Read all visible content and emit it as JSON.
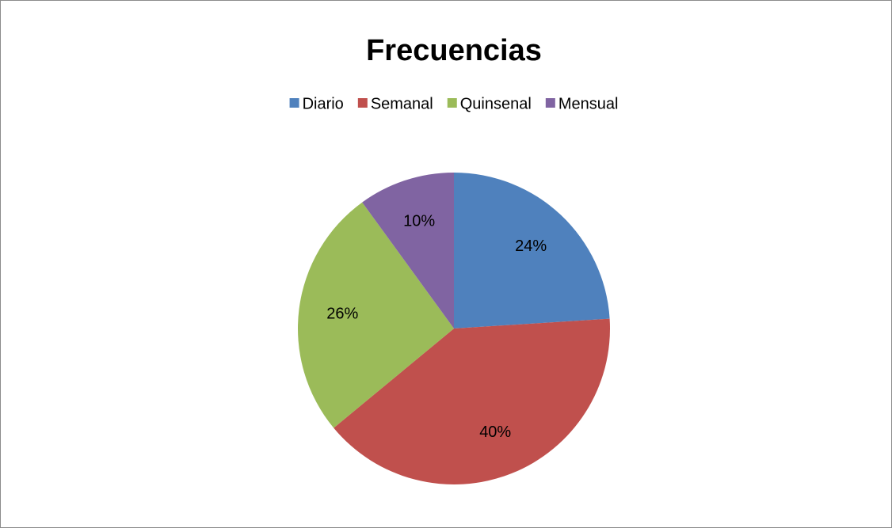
{
  "chart_data": {
    "type": "pie",
    "title": "Frecuencias",
    "categories": [
      "Diario",
      "Semanal",
      "Quinsenal",
      "Mensual"
    ],
    "values": [
      24,
      40,
      26,
      10
    ],
    "value_labels": [
      "24%",
      "40%",
      "26%",
      "10%"
    ],
    "colors": [
      "#4f81bd",
      "#c0504d",
      "#9bbb59",
      "#8064a2"
    ],
    "legend": "top"
  }
}
